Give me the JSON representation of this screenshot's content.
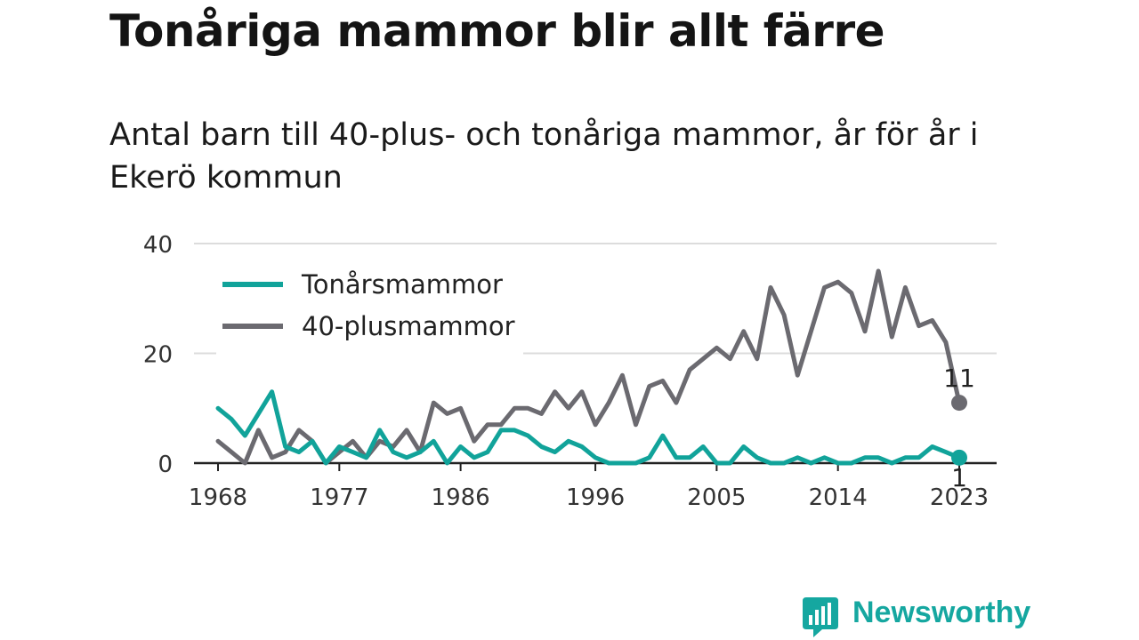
{
  "header": {
    "title": "Tonåriga mammor blir allt färre",
    "subtitle": "Antal barn till 40-plus- och tonåriga mammor, år för år i Ekerö kommun"
  },
  "logo": {
    "text": "Newsworthy",
    "icon": "bar-chart-icon",
    "color": "#15a7a0"
  },
  "chart_data": {
    "type": "line",
    "title": "Tonåriga mammor blir allt färre",
    "subtitle": "Antal barn till 40-plus- och tonåriga mammor, år för år i Ekerö kommun",
    "xlabel": "",
    "ylabel": "",
    "x": [
      1968,
      1969,
      1970,
      1971,
      1972,
      1973,
      1974,
      1975,
      1976,
      1977,
      1978,
      1979,
      1980,
      1981,
      1982,
      1983,
      1984,
      1985,
      1986,
      1987,
      1988,
      1989,
      1990,
      1991,
      1992,
      1993,
      1994,
      1995,
      1996,
      1997,
      1998,
      1999,
      2000,
      2001,
      2002,
      2003,
      2004,
      2005,
      2006,
      2007,
      2008,
      2009,
      2010,
      2011,
      2012,
      2013,
      2014,
      2015,
      2016,
      2017,
      2018,
      2019,
      2020,
      2021,
      2022,
      2023
    ],
    "x_ticks": [
      1968,
      1977,
      1986,
      1996,
      2005,
      2014,
      2023
    ],
    "ylim": [
      0,
      40
    ],
    "y_ticks": [
      0,
      20,
      40
    ],
    "grid": true,
    "legend_position": "top-left",
    "series": [
      {
        "name": "Tonårsmammor",
        "color": "#11a39a",
        "values": [
          10,
          8,
          5,
          9,
          13,
          3,
          2,
          4,
          0,
          3,
          2,
          1,
          6,
          2,
          1,
          2,
          4,
          0,
          3,
          1,
          2,
          6,
          6,
          5,
          3,
          2,
          4,
          3,
          1,
          0,
          0,
          0,
          1,
          5,
          1,
          1,
          3,
          0,
          0,
          3,
          1,
          0,
          0,
          1,
          0,
          1,
          0,
          0,
          1,
          1,
          0,
          1,
          1,
          3,
          2,
          1
        ],
        "end_label": "1"
      },
      {
        "name": "40-plusmammor",
        "color": "#6b6a70",
        "values": [
          4,
          2,
          0,
          6,
          1,
          2,
          6,
          4,
          0,
          2,
          4,
          1,
          4,
          3,
          6,
          2,
          11,
          9,
          10,
          4,
          7,
          7,
          10,
          10,
          9,
          13,
          10,
          13,
          7,
          11,
          16,
          7,
          14,
          15,
          11,
          17,
          19,
          21,
          19,
          24,
          19,
          32,
          27,
          16,
          24,
          32,
          33,
          31,
          24,
          35,
          23,
          32,
          25,
          26,
          22,
          11
        ],
        "end_label": "11"
      }
    ]
  }
}
